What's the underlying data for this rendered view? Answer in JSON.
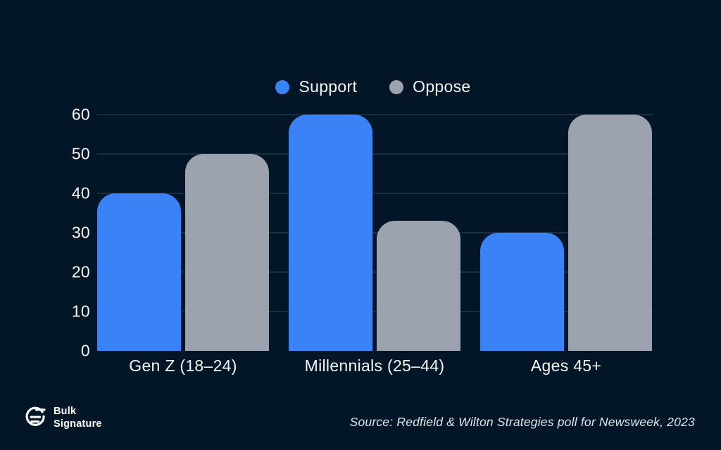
{
  "app": {
    "background_color": "#031628",
    "text_color": "#f4f6f8"
  },
  "chart_data": {
    "type": "bar",
    "categories": [
      "Gen Z (18–24)",
      "Millennials (25–44)",
      "Ages 45+"
    ],
    "series": [
      {
        "name": "Support",
        "color": "#3b82f6",
        "values": [
          40,
          60,
          30
        ]
      },
      {
        "name": "Oppose",
        "color": "#9ca3af",
        "values": [
          50,
          33,
          60
        ]
      }
    ],
    "title": "",
    "xlabel": "",
    "ylabel": "",
    "ylim": [
      0,
      60
    ],
    "yticks": [
      0,
      10,
      20,
      30,
      40,
      50,
      60
    ],
    "grid": true,
    "legend_position": "top-center"
  },
  "footer": {
    "logo_line1": "Bulk",
    "logo_line2": "Signature",
    "source": "Source: Redfield & Wilton Strategies poll for Newsweek, 2023"
  }
}
